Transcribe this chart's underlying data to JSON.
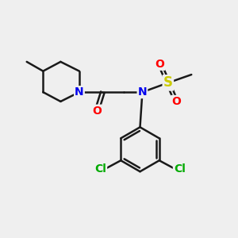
{
  "background_color": "#efefef",
  "bond_color": "#1a1a1a",
  "bond_width": 1.8,
  "atom_colors": {
    "N": "#0000ee",
    "O": "#ff0000",
    "S": "#cccc00",
    "Cl": "#00aa00",
    "C": "#1a1a1a"
  },
  "font_size": 10,
  "figsize": [
    3.0,
    3.0
  ],
  "dpi": 100,
  "xlim": [
    0,
    10
  ],
  "ylim": [
    0,
    10
  ]
}
